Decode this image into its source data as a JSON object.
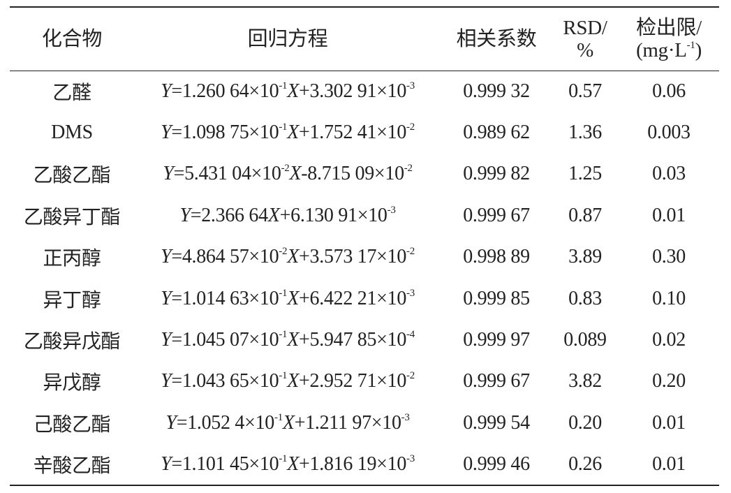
{
  "table": {
    "header": [
      [
        [
          "化合物"
        ]
      ],
      [
        [
          "回归方程"
        ]
      ],
      [
        [
          "相关系数"
        ]
      ],
      [
        [
          "RSD/"
        ],
        [
          "%"
        ]
      ],
      [
        [
          "检出限/"
        ],
        [
          "(mg·L",
          "-1",
          ")"
        ]
      ]
    ],
    "rows": [
      [
        "乙醛",
        [
          "Y",
          "=1.260 64×10",
          "-1",
          "X",
          "+3.302 91×10",
          "-3"
        ],
        "0.999 32",
        "0.57",
        "0.06"
      ],
      [
        "DMS",
        [
          "Y",
          "=1.098 75×10",
          "-1",
          "X",
          "+1.752 41×10",
          "-2"
        ],
        "0.989 62",
        "1.36",
        "0.003"
      ],
      [
        "乙酸乙酯",
        [
          "Y",
          "=5.431 04×10",
          "-2",
          "X",
          "-8.715 09×10",
          "-2"
        ],
        "0.999 82",
        "1.25",
        "0.03"
      ],
      [
        "乙酸异丁酯",
        [
          "Y",
          "=2.366 64",
          "X",
          "+6.130 91×10",
          "-3"
        ],
        "0.999 67",
        "0.87",
        "0.01"
      ],
      [
        "正丙醇",
        [
          "Y",
          "=4.864 57×10",
          "-2",
          "X",
          "+3.573 17×10",
          "-2"
        ],
        "0.998 89",
        "3.89",
        "0.30"
      ],
      [
        "异丁醇",
        [
          "Y",
          "=1.014 63×10",
          "-1",
          "X",
          "+6.422 21×10",
          "-3"
        ],
        "0.999 85",
        "0.83",
        "0.10"
      ],
      [
        "乙酸异戊酯",
        [
          "Y",
          "=1.045 07×10",
          "-1",
          "X",
          "+5.947 85×10",
          "-4"
        ],
        "0.999 97",
        "0.089",
        "0.02"
      ],
      [
        "异戊醇",
        [
          "Y",
          "=1.043 65×10",
          "-1",
          "X",
          "+2.952 71×10",
          "-2"
        ],
        "0.999 67",
        "3.82",
        "0.20"
      ],
      [
        "己酸乙酯",
        [
          "Y",
          "=1.052 4×10",
          "-1",
          "X",
          "+1.211 97×10",
          "-3"
        ],
        "0.999 54",
        "0.20",
        "0.01"
      ],
      [
        "辛酸乙酯",
        [
          "Y",
          "=1.101 45×10",
          "-1",
          "X",
          "+1.816 19×10",
          "-3"
        ],
        "0.999 46",
        "0.26",
        "0.01"
      ]
    ]
  }
}
